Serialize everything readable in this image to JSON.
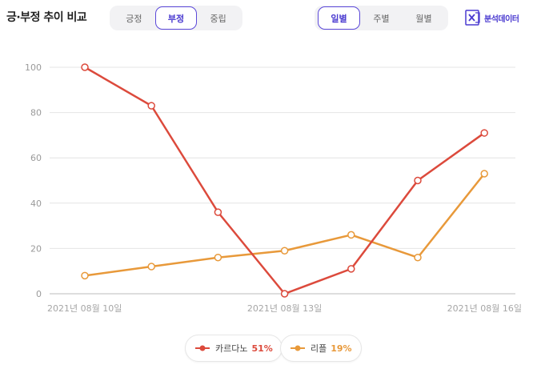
{
  "header": {
    "title": "긍·부정 추이 비교",
    "sentiment_tabs": [
      {
        "label": "긍정",
        "active": false
      },
      {
        "label": "부정",
        "active": true
      },
      {
        "label": "중립",
        "active": false
      }
    ],
    "period_tabs": [
      {
        "label": "일별",
        "active": true
      },
      {
        "label": "주별",
        "active": false
      },
      {
        "label": "월별",
        "active": false
      }
    ],
    "export_label": "분석데이터",
    "export_icon": "excel-icon"
  },
  "chart_data": {
    "type": "line",
    "x": [
      "2021년 08월 10일",
      "2021년 08월 11일",
      "2021년 08월 12일",
      "2021년 08월 13일",
      "2021년 08월 14일",
      "2021년 08월 15일",
      "2021년 08월 16일"
    ],
    "x_tick_labels": [
      "2021년 08월 10일",
      "2021년 08월 13일",
      "2021년 08월 16일"
    ],
    "y_ticks": [
      "0",
      "20",
      "40",
      "60",
      "80",
      "100"
    ],
    "ylim": [
      0,
      100
    ],
    "grid": true,
    "series": [
      {
        "name": "카르다노",
        "color": "#dc4a3c",
        "values": [
          100,
          83,
          36,
          0,
          11,
          50,
          71
        ]
      },
      {
        "name": "리플",
        "color": "#e8993a",
        "values": [
          8,
          12,
          16,
          19,
          26,
          16,
          53
        ]
      }
    ]
  },
  "legend": [
    {
      "name": "카르다노",
      "percent": "51%",
      "color": "#dc4a3c"
    },
    {
      "name": "리플",
      "percent": "19%",
      "color": "#e8993a"
    }
  ]
}
